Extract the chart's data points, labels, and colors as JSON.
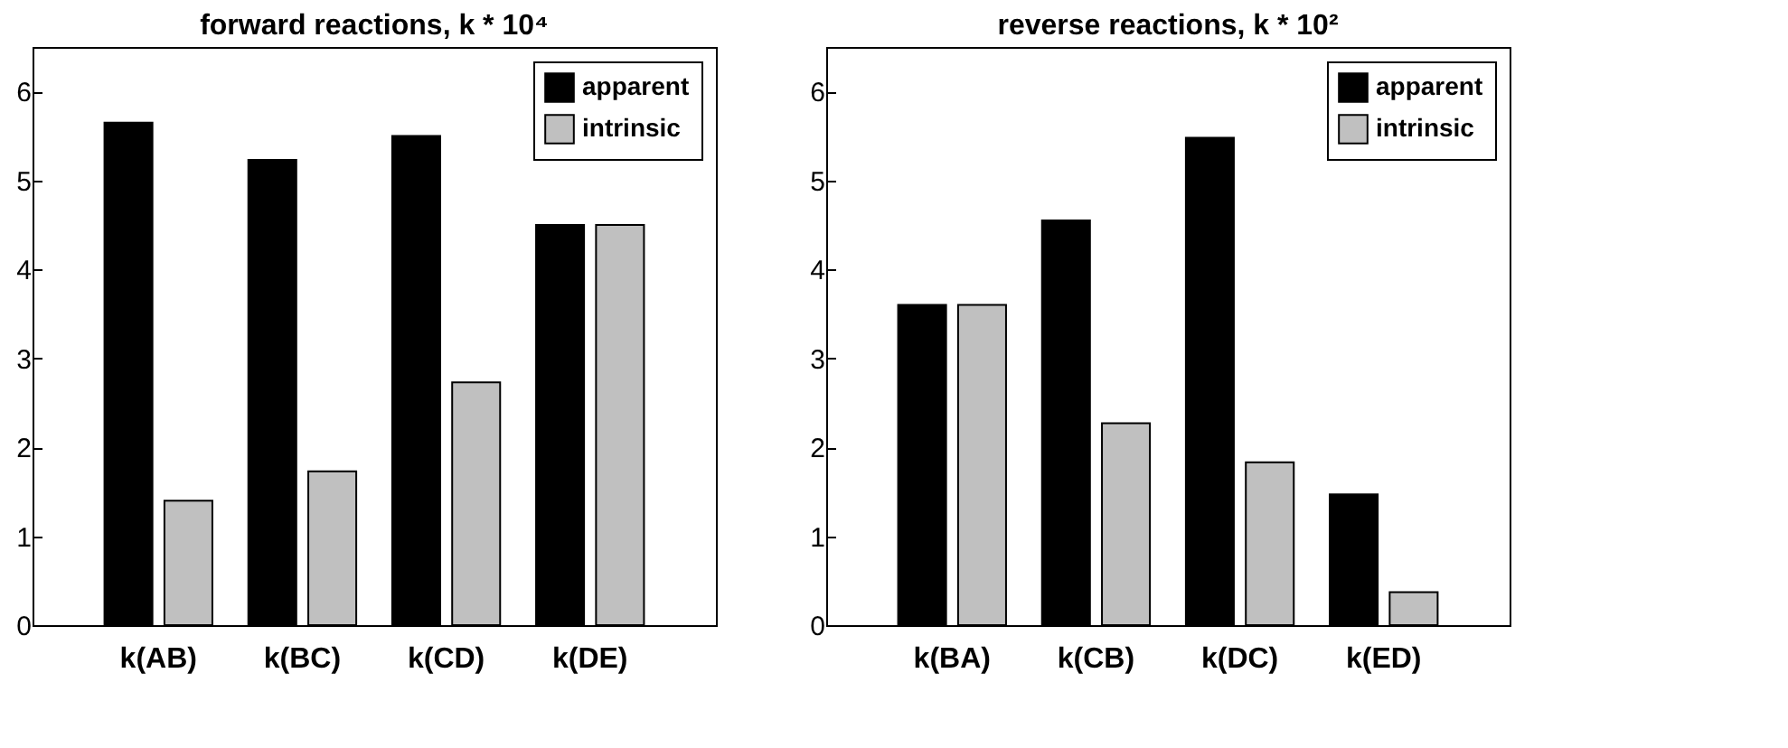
{
  "chart_data": [
    {
      "type": "bar",
      "title": "forward reactions, k * 10⁴",
      "categories": [
        "k(AB)",
        "k(BC)",
        "k(CD)",
        "k(DE)"
      ],
      "series": [
        {
          "name": "apparent",
          "color": "#000000",
          "values": [
            5.65,
            5.23,
            5.5,
            4.5
          ]
        },
        {
          "name": "intrinsic",
          "color": "#c0c0c0",
          "values": [
            1.4,
            1.73,
            2.73,
            4.5
          ]
        }
      ],
      "ylim": [
        0,
        6.5
      ],
      "yticks": [
        0,
        1,
        2,
        3,
        4,
        5,
        6
      ],
      "legend": "top right"
    },
    {
      "type": "bar",
      "title": "reverse reactions, k * 10²",
      "categories": [
        "k(BA)",
        "k(CB)",
        "k(DC)",
        "k(ED)"
      ],
      "series": [
        {
          "name": "apparent",
          "color": "#000000",
          "values": [
            3.6,
            4.55,
            5.48,
            1.47
          ]
        },
        {
          "name": "intrinsic",
          "color": "#c0c0c0",
          "values": [
            3.6,
            2.27,
            1.83,
            0.37
          ]
        }
      ],
      "ylim": [
        0,
        6.5
      ],
      "yticks": [
        0,
        1,
        2,
        3,
        4,
        5,
        6
      ],
      "legend": "top right"
    }
  ]
}
